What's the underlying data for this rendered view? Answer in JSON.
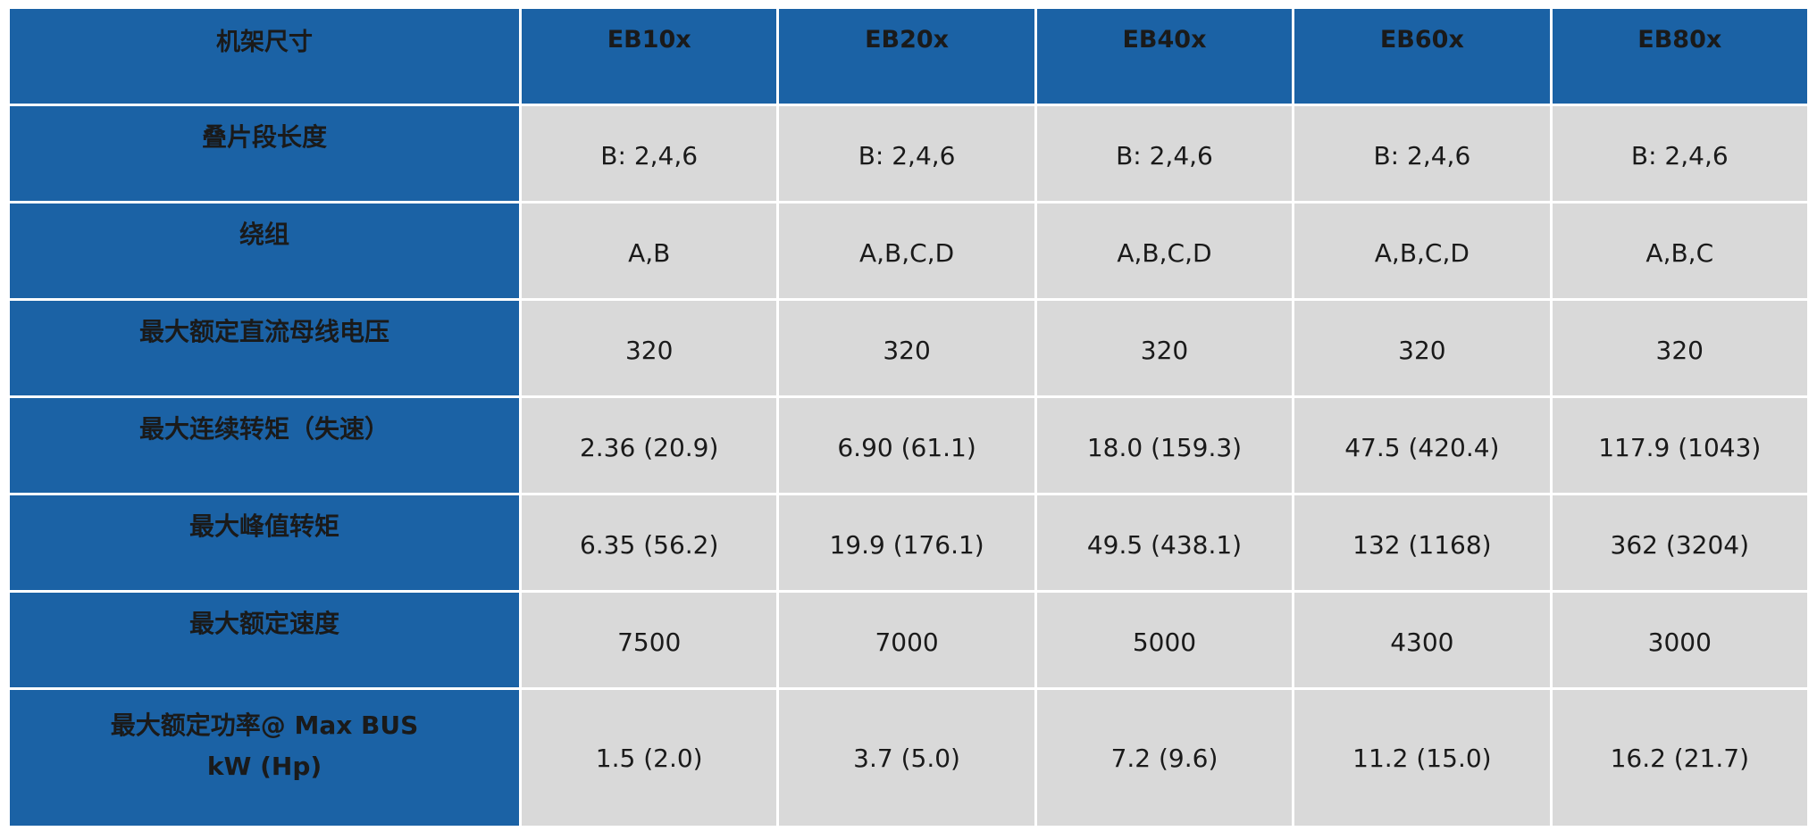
{
  "header": {
    "corner_label": "机架尺寸",
    "frames": [
      "EB10x",
      "EB20x",
      "EB40x",
      "EB60x",
      "EB80x"
    ]
  },
  "rows": [
    {
      "label": "叠片段长度",
      "values": [
        "B: 2,4,6",
        "B: 2,4,6",
        "B: 2,4,6",
        "B: 2,4,6",
        "B: 2,4,6"
      ]
    },
    {
      "label": "绕组",
      "values": [
        "A,B",
        "A,B,C,D",
        "A,B,C,D",
        "A,B,C,D",
        "A,B,C"
      ]
    },
    {
      "label": "最大额定直流母线电压",
      "values": [
        "320",
        "320",
        "320",
        "320",
        "320"
      ]
    },
    {
      "label": "最大连续转矩（失速）",
      "values": [
        "2.36 (20.9)",
        "6.90 (61.1)",
        "18.0 (159.3)",
        "47.5 (420.4)",
        "117.9 (1043)"
      ]
    },
    {
      "label": "最大峰值转矩",
      "values": [
        "6.35 (56.2)",
        "19.9 (176.1)",
        "49.5 (438.1)",
        "132 (1168)",
        "362 (3204)"
      ]
    },
    {
      "label": "最大额定速度",
      "values": [
        "7500",
        "7000",
        "5000",
        "4300",
        "3000"
      ]
    },
    {
      "label_line1": "最大额定功率@ Max BUS",
      "label_line2": "kW (Hp)",
      "values": [
        "1.5 (2.0)",
        "3.7 (5.0)",
        "7.2 (9.6)",
        "11.2 (15.0)",
        "16.2 (21.7)"
      ]
    }
  ]
}
